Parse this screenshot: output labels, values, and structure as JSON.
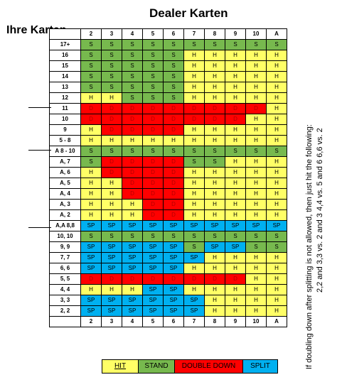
{
  "title": "Dealer Karten",
  "subtitle": "Ihre Karten",
  "header": [
    "2",
    "3",
    "4",
    "5",
    "6",
    "7",
    "8",
    "9",
    "10",
    "A"
  ],
  "rows": [
    {
      "label": "17+",
      "cells": [
        "S",
        "S",
        "S",
        "S",
        "S",
        "S",
        "S",
        "S",
        "S",
        "S"
      ]
    },
    {
      "label": "16",
      "cells": [
        "S",
        "S",
        "S",
        "S",
        "S",
        "H",
        "H",
        "H",
        "H",
        "H"
      ]
    },
    {
      "label": "15",
      "cells": [
        "S",
        "S",
        "S",
        "S",
        "S",
        "H",
        "H",
        "H",
        "H",
        "H"
      ]
    },
    {
      "label": "14",
      "cells": [
        "S",
        "S",
        "S",
        "S",
        "S",
        "H",
        "H",
        "H",
        "H",
        "H"
      ]
    },
    {
      "label": "13",
      "cells": [
        "S",
        "S",
        "S",
        "S",
        "S",
        "H",
        "H",
        "H",
        "H",
        "H"
      ]
    },
    {
      "label": "12",
      "cells": [
        "H",
        "H",
        "S",
        "S",
        "S",
        "H",
        "H",
        "H",
        "H",
        "H"
      ]
    },
    {
      "label": "11",
      "cells": [
        "D",
        "D",
        "D",
        "D",
        "D",
        "D",
        "D",
        "D",
        "D",
        "H"
      ]
    },
    {
      "label": "10",
      "cells": [
        "D",
        "D",
        "D",
        "D",
        "D",
        "D",
        "D",
        "D",
        "H",
        "H"
      ]
    },
    {
      "label": "9",
      "cells": [
        "H",
        "D",
        "D",
        "D",
        "D",
        "H",
        "H",
        "H",
        "H",
        "H"
      ]
    },
    {
      "label": "5 - 8",
      "cells": [
        "H",
        "H",
        "H",
        "H",
        "H",
        "H",
        "H",
        "H",
        "H",
        "H"
      ]
    },
    {
      "label": "A 8 - 10",
      "cells": [
        "S",
        "S",
        "S",
        "S",
        "S",
        "S",
        "S",
        "S",
        "S",
        "S"
      ]
    },
    {
      "label": "A, 7",
      "cells": [
        "S",
        "D",
        "D",
        "D",
        "D",
        "S",
        "S",
        "H",
        "H",
        "H"
      ]
    },
    {
      "label": "A, 6",
      "cells": [
        "H",
        "D",
        "D",
        "D",
        "D",
        "H",
        "H",
        "H",
        "H",
        "H"
      ]
    },
    {
      "label": "A, 5",
      "cells": [
        "H",
        "H",
        "D",
        "D",
        "D",
        "H",
        "H",
        "H",
        "H",
        "H"
      ]
    },
    {
      "label": "A, 4",
      "cells": [
        "H",
        "H",
        "D",
        "D",
        "D",
        "H",
        "H",
        "H",
        "H",
        "H"
      ]
    },
    {
      "label": "A, 3",
      "cells": [
        "H",
        "H",
        "H",
        "D",
        "D",
        "H",
        "H",
        "H",
        "H",
        "H"
      ]
    },
    {
      "label": "A, 2",
      "cells": [
        "H",
        "H",
        "H",
        "D",
        "D",
        "H",
        "H",
        "H",
        "H",
        "H"
      ]
    },
    {
      "label": "A,A 8,8",
      "cells": [
        "SP",
        "SP",
        "SP",
        "SP",
        "SP",
        "SP",
        "SP",
        "SP",
        "SP",
        "SP"
      ]
    },
    {
      "label": "10, 10",
      "cells": [
        "S",
        "S",
        "S",
        "S",
        "S",
        "S",
        "S",
        "S",
        "S",
        "S"
      ]
    },
    {
      "label": "9, 9",
      "cells": [
        "SP",
        "SP",
        "SP",
        "SP",
        "SP",
        "S",
        "SP",
        "SP",
        "S",
        "S"
      ]
    },
    {
      "label": "7, 7",
      "cells": [
        "SP",
        "SP",
        "SP",
        "SP",
        "SP",
        "SP",
        "H",
        "H",
        "H",
        "H"
      ]
    },
    {
      "label": "6, 6",
      "cells": [
        "SP",
        "SP",
        "SP",
        "SP",
        "SP",
        "H",
        "H",
        "H",
        "H",
        "H"
      ]
    },
    {
      "label": "5, 5",
      "cells": [
        "D",
        "D",
        "D",
        "D",
        "D",
        "D",
        "D",
        "D",
        "H",
        "H"
      ]
    },
    {
      "label": "4, 4",
      "cells": [
        "H",
        "H",
        "H",
        "SP",
        "SP",
        "H",
        "H",
        "H",
        "H",
        "H"
      ]
    },
    {
      "label": "3, 3",
      "cells": [
        "SP",
        "SP",
        "SP",
        "SP",
        "SP",
        "SP",
        "H",
        "H",
        "H",
        "H"
      ]
    },
    {
      "label": "2, 2",
      "cells": [
        "SP",
        "SP",
        "SP",
        "SP",
        "SP",
        "SP",
        "H",
        "H",
        "H",
        "H"
      ]
    }
  ],
  "side_note": {
    "line1": "If doubling down after splitting is not allowed, then just hit the following:",
    "line2": "2,2 and 3,3 vs. 2 and 3     4,4 vs. 5 and 6     6,6 vs. 2"
  },
  "legend": {
    "hit": "HIT",
    "stand": "STAND",
    "double_down": "DOUBLE DOWN",
    "split": "SPLIT"
  },
  "colors": {
    "hit": "#ffff66",
    "stand": "#77b94e",
    "double_down": "#ff0000",
    "split": "#00b0f0"
  }
}
